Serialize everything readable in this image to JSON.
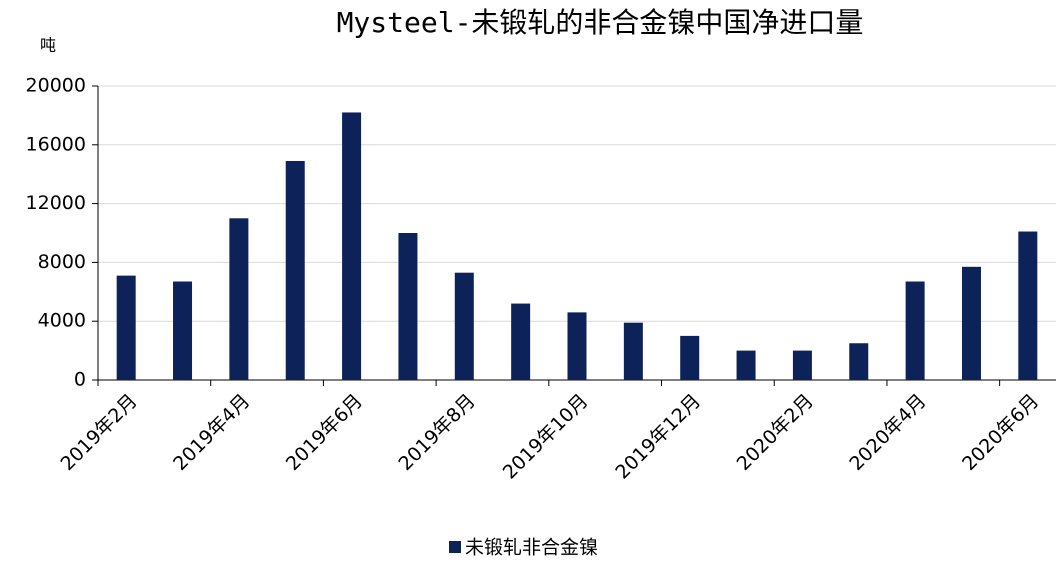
{
  "chart_data": {
    "type": "bar",
    "title": "Mysteel-未锻轧的非合金镍中国净进口量",
    "y_label": "吨",
    "categories": [
      "2019年2月",
      null,
      "2019年4月",
      null,
      "2019年6月",
      null,
      "2019年8月",
      null,
      "2019年10月",
      null,
      "2019年12月",
      null,
      "2020年2月",
      null,
      "2020年4月",
      null,
      "2020年6月"
    ],
    "series": [
      {
        "name": "未锻轧非合金镍",
        "color": "#0c2259",
        "values": [
          7100,
          6700,
          11000,
          14900,
          18200,
          10000,
          7300,
          5200,
          4600,
          3900,
          3000,
          2000,
          2000,
          2500,
          6700,
          7700,
          10100
        ]
      }
    ],
    "ylim": [
      0,
      20000
    ],
    "yticks": [
      0,
      4000,
      8000,
      12000,
      16000,
      20000
    ],
    "grid": true,
    "legend": "bottom"
  }
}
